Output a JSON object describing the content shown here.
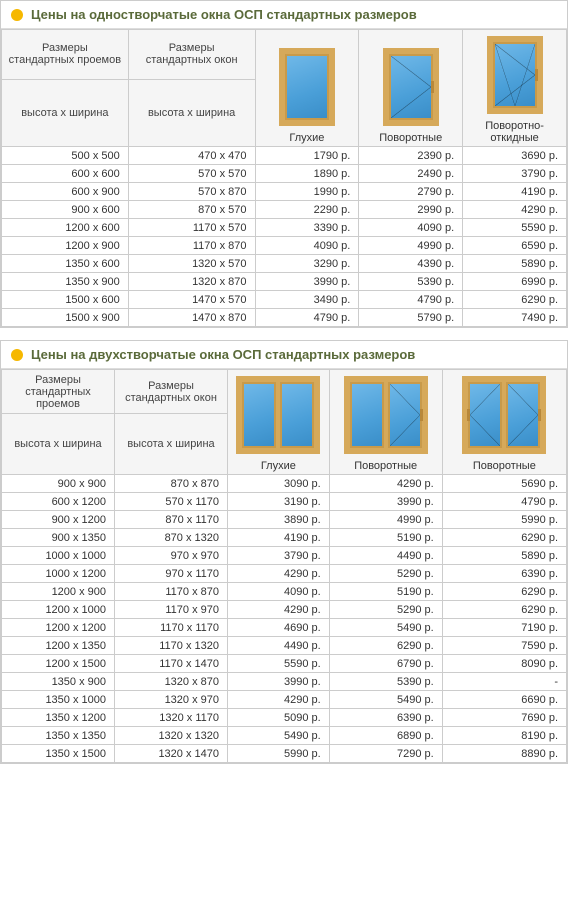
{
  "meta": {
    "currency_suffix": " р.",
    "colors": {
      "accent_bullet": "#f6b800",
      "header_text": "#5a6a3a",
      "border": "#cccccc",
      "frame": "#d6a95a",
      "glass_top": "#6fb8e8",
      "glass_bottom": "#3a8ec8"
    }
  },
  "table1": {
    "title": "Цены на одностворчатые окна ОСП стандартных размеров",
    "col_headers": {
      "sizes_openings": "Размеры стандартных проемов",
      "sizes_windows": "Размеры стандартных окон",
      "hxw": "высота х ширина"
    },
    "window_types": [
      "Глухие",
      "Поворотные",
      "Поворотно-откидные"
    ],
    "rows": [
      {
        "opening": "500 х 500",
        "window": "470 х 470",
        "p": [
          "1790",
          "2390",
          "3690"
        ]
      },
      {
        "opening": "600 х 600",
        "window": "570 х 570",
        "p": [
          "1890",
          "2490",
          "3790"
        ]
      },
      {
        "opening": "600 х 900",
        "window": "570 х 870",
        "p": [
          "1990",
          "2790",
          "4190"
        ]
      },
      {
        "opening": "900 х 600",
        "window": "870 х 570",
        "p": [
          "2290",
          "2990",
          "4290"
        ]
      },
      {
        "opening": "1200 х 600",
        "window": "1170 х 570",
        "p": [
          "3390",
          "4090",
          "5590"
        ]
      },
      {
        "opening": "1200 х 900",
        "window": "1170 х 870",
        "p": [
          "4090",
          "4990",
          "6590"
        ]
      },
      {
        "opening": "1350 х 600",
        "window": "1320 х 570",
        "p": [
          "3290",
          "4390",
          "5890"
        ]
      },
      {
        "opening": "1350 х 900",
        "window": "1320 х 870",
        "p": [
          "3990",
          "5390",
          "6990"
        ]
      },
      {
        "opening": "1500 х 600",
        "window": "1470 х 570",
        "p": [
          "3490",
          "4790",
          "6290"
        ]
      },
      {
        "opening": "1500 х 900",
        "window": "1470 х 870",
        "p": [
          "4790",
          "5790",
          "7490"
        ]
      }
    ]
  },
  "table2": {
    "title": "Цены на двухстворчатые окна ОСП стандартных размеров",
    "col_headers": {
      "sizes_openings": "Размеры стандартных проемов",
      "sizes_windows": "Размеры стандартных окон",
      "hxw": "высота х ширина"
    },
    "window_types": [
      "Глухие",
      "Поворотные",
      "Поворотные"
    ],
    "rows": [
      {
        "opening": "900 х 900",
        "window": "870 х 870",
        "p": [
          "3090",
          "4290",
          "5690"
        ]
      },
      {
        "opening": "600 х 1200",
        "window": "570 х 1170",
        "p": [
          "3190",
          "3990",
          "4790"
        ]
      },
      {
        "opening": "900 х 1200",
        "window": "870 х 1170",
        "p": [
          "3890",
          "4990",
          "5990"
        ]
      },
      {
        "opening": "900 х 1350",
        "window": "870 х 1320",
        "p": [
          "4190",
          "5190",
          "6290"
        ]
      },
      {
        "opening": "1000 х 1000",
        "window": "970 х 970",
        "p": [
          "3790",
          "4490",
          "5890"
        ]
      },
      {
        "opening": "1000 х 1200",
        "window": "970 х 1170",
        "p": [
          "4290",
          "5290",
          "6390"
        ]
      },
      {
        "opening": "1200 х 900",
        "window": "1170 х 870",
        "p": [
          "4090",
          "5190",
          "6290"
        ]
      },
      {
        "opening": "1200 х 1000",
        "window": "1170 х 970",
        "p": [
          "4290",
          "5290",
          "6290"
        ]
      },
      {
        "opening": "1200 х 1200",
        "window": "1170 х 1170",
        "p": [
          "4690",
          "5490",
          "7190"
        ]
      },
      {
        "opening": "1200 х 1350",
        "window": "1170 х 1320",
        "p": [
          "4490",
          "6290",
          "7590"
        ]
      },
      {
        "opening": "1200 х 1500",
        "window": "1170 х 1470",
        "p": [
          "5590",
          "6790",
          "8090"
        ]
      },
      {
        "opening": "1350 х 900",
        "window": "1320 х 870",
        "p": [
          "3990",
          "5390",
          null
        ]
      },
      {
        "opening": "1350 х 1000",
        "window": "1320 х 970",
        "p": [
          "4290",
          "5490",
          "6690"
        ]
      },
      {
        "opening": "1350 х 1200",
        "window": "1320 х 1170",
        "p": [
          "5090",
          "6390",
          "7690"
        ]
      },
      {
        "opening": "1350 х 1350",
        "window": "1320 х 1320",
        "p": [
          "5490",
          "6890",
          "8190"
        ]
      },
      {
        "opening": "1350 х 1500",
        "window": "1320 х 1470",
        "p": [
          "5990",
          "7290",
          "8890"
        ]
      }
    ]
  }
}
